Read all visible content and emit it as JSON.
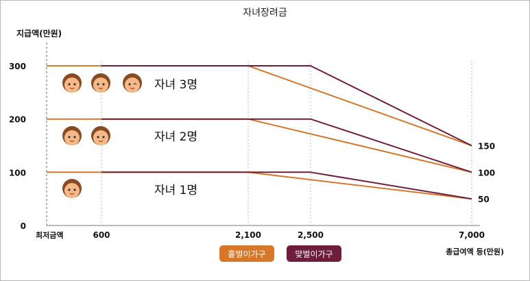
{
  "chart_data": {
    "type": "line",
    "title": "자녀장려금",
    "ylabel": "지급액(만원)",
    "xlabel": "총급여액 등(만원)",
    "ylim": [
      0,
      340
    ],
    "yticks": [
      0,
      100,
      200,
      300
    ],
    "x_tick_labels": [
      {
        "x": 0,
        "label": "최저금액"
      },
      {
        "x": 600,
        "label": "600"
      },
      {
        "x": 2100,
        "label": "2,100"
      },
      {
        "x": 2500,
        "label": "2,500"
      },
      {
        "x": 7000,
        "label": "7,000"
      }
    ],
    "groups": [
      {
        "label": "자녀 1명",
        "children": 1
      },
      {
        "label": "자녀 2명",
        "children": 2
      },
      {
        "label": "자녀 3명",
        "children": 3
      }
    ],
    "right_labels": [
      "150",
      "100",
      "50"
    ],
    "legend": [
      {
        "label": "홑벌이가구",
        "color": "#d7772a"
      },
      {
        "label": "맞벌이가구",
        "color": "#6e1d3a"
      }
    ],
    "series": [
      {
        "name": "홑벌이가구",
        "color": "#d7772a",
        "group": "자녀 3명",
        "points": [
          [
            0,
            300
          ],
          [
            2100,
            300
          ],
          [
            7000,
            150
          ]
        ]
      },
      {
        "name": "맞벌이가구",
        "color": "#6e1d3a",
        "group": "자녀 3명",
        "points": [
          [
            600,
            300
          ],
          [
            2500,
            300
          ],
          [
            7000,
            150
          ]
        ]
      },
      {
        "name": "홑벌이가구",
        "color": "#d7772a",
        "group": "자녀 2명",
        "points": [
          [
            0,
            200
          ],
          [
            2100,
            200
          ],
          [
            7000,
            100
          ]
        ]
      },
      {
        "name": "맞벌이가구",
        "color": "#6e1d3a",
        "group": "자녀 2명",
        "points": [
          [
            600,
            200
          ],
          [
            2500,
            200
          ],
          [
            7000,
            100
          ]
        ]
      },
      {
        "name": "홑벌이가구",
        "color": "#d7772a",
        "group": "자녀 1명",
        "points": [
          [
            0,
            100
          ],
          [
            2100,
            100
          ],
          [
            7000,
            50
          ]
        ]
      },
      {
        "name": "맞벌이가구",
        "color": "#6e1d3a",
        "group": "자녀 1명",
        "points": [
          [
            600,
            100
          ],
          [
            2500,
            100
          ],
          [
            7000,
            50
          ]
        ]
      }
    ],
    "grid": false
  },
  "icons": {
    "face": "child-face-icon",
    "skin": "#f5b98a",
    "hair": "#8a4b22"
  }
}
